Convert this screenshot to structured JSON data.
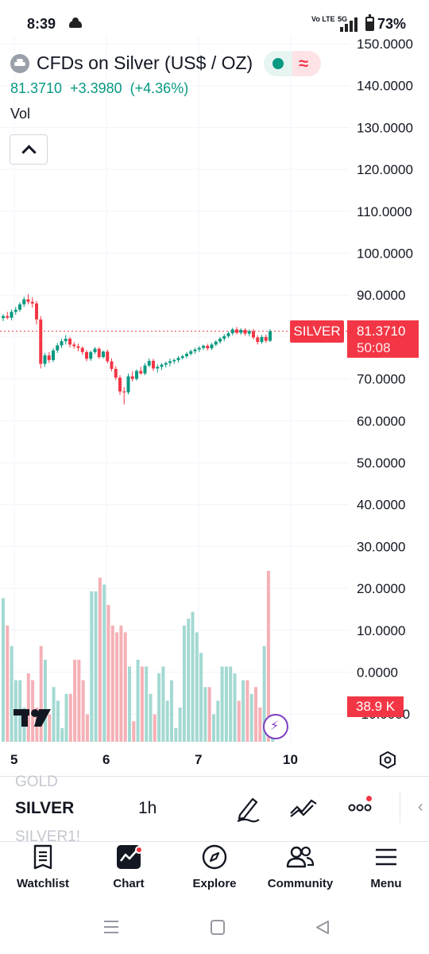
{
  "status_bar": {
    "time": "8:39",
    "volte": "Vo LTE",
    "network": "5G",
    "battery_text": "73%",
    "battery_level": 0.73
  },
  "header": {
    "symbol_title": "CFDs on Silver (US$ / OZ)",
    "last_price": "81.3710",
    "change": "+3.3980",
    "change_percent": "(+4.36%)",
    "vol_label": "Vol",
    "up_color": "#089981",
    "down_color": "#f23645"
  },
  "price_axis": {
    "ticks": [
      "150.0000",
      "140.0000",
      "130.0000",
      "120.0000",
      "110.0000",
      "100.0000",
      "90.0000",
      "81.3710",
      "70.0000",
      "60.0000",
      "50.0000",
      "40.0000",
      "30.0000",
      "20.0000",
      "10.0000",
      "0.0000",
      "-10.0000"
    ],
    "price_tag_symbol": "SILVER",
    "price_tag_value": "81.3710",
    "countdown": "50:08",
    "volume_tag": "38.9 K"
  },
  "time_axis": {
    "labels": [
      "5",
      "6",
      "7",
      "10"
    ]
  },
  "chart_data": {
    "type": "candlestick",
    "title": "CFDs on Silver (US$ / OZ)",
    "interval": "1h",
    "last_price": 81.371,
    "ylim": [
      -10,
      150
    ],
    "x_ticks": [
      "5",
      "6",
      "7",
      "10"
    ],
    "candles": [
      {
        "o": 84.5,
        "h": 85.5,
        "l": 83.8,
        "c": 85.0
      },
      {
        "o": 85.0,
        "h": 86.0,
        "l": 84.2,
        "c": 84.6
      },
      {
        "o": 84.6,
        "h": 86.6,
        "l": 84.0,
        "c": 86.0
      },
      {
        "o": 86.0,
        "h": 87.2,
        "l": 85.3,
        "c": 86.5
      },
      {
        "o": 86.5,
        "h": 88.3,
        "l": 86.0,
        "c": 87.8
      },
      {
        "o": 87.8,
        "h": 89.6,
        "l": 87.2,
        "c": 89.0
      },
      {
        "o": 89.0,
        "h": 90.2,
        "l": 87.8,
        "c": 88.4
      },
      {
        "o": 88.4,
        "h": 89.5,
        "l": 87.0,
        "c": 88.0
      },
      {
        "o": 88.0,
        "h": 88.6,
        "l": 83.0,
        "c": 84.2
      },
      {
        "o": 84.2,
        "h": 85.0,
        "l": 72.5,
        "c": 73.6
      },
      {
        "o": 73.6,
        "h": 76.2,
        "l": 72.9,
        "c": 75.6
      },
      {
        "o": 75.6,
        "h": 76.4,
        "l": 73.8,
        "c": 74.5
      },
      {
        "o": 74.5,
        "h": 77.3,
        "l": 74.0,
        "c": 76.8
      },
      {
        "o": 76.8,
        "h": 78.6,
        "l": 76.2,
        "c": 78.0
      },
      {
        "o": 78.0,
        "h": 79.6,
        "l": 77.4,
        "c": 79.0
      },
      {
        "o": 79.0,
        "h": 80.5,
        "l": 78.2,
        "c": 79.6
      },
      {
        "o": 79.6,
        "h": 80.0,
        "l": 77.5,
        "c": 78.2
      },
      {
        "o": 78.2,
        "h": 78.8,
        "l": 77.2,
        "c": 77.8
      },
      {
        "o": 77.8,
        "h": 78.4,
        "l": 76.6,
        "c": 77.4
      },
      {
        "o": 77.4,
        "h": 77.8,
        "l": 75.8,
        "c": 76.4
      },
      {
        "o": 76.4,
        "h": 76.9,
        "l": 74.2,
        "c": 74.8
      },
      {
        "o": 74.8,
        "h": 76.8,
        "l": 74.3,
        "c": 76.4
      },
      {
        "o": 76.4,
        "h": 77.6,
        "l": 75.9,
        "c": 77.2
      },
      {
        "o": 77.2,
        "h": 77.6,
        "l": 74.8,
        "c": 75.2
      },
      {
        "o": 75.2,
        "h": 76.8,
        "l": 74.9,
        "c": 76.5
      },
      {
        "o": 76.5,
        "h": 77.0,
        "l": 73.7,
        "c": 74.2
      },
      {
        "o": 74.2,
        "h": 74.9,
        "l": 71.8,
        "c": 72.4
      },
      {
        "o": 72.4,
        "h": 73.1,
        "l": 69.7,
        "c": 70.3
      },
      {
        "o": 70.3,
        "h": 70.9,
        "l": 66.2,
        "c": 67.0
      },
      {
        "o": 67.0,
        "h": 68.0,
        "l": 63.9,
        "c": 66.8
      },
      {
        "o": 66.8,
        "h": 71.3,
        "l": 66.3,
        "c": 70.6
      },
      {
        "o": 70.6,
        "h": 71.8,
        "l": 69.4,
        "c": 70.0
      },
      {
        "o": 70.0,
        "h": 72.3,
        "l": 69.6,
        "c": 71.9
      },
      {
        "o": 71.9,
        "h": 72.9,
        "l": 71.0,
        "c": 71.3
      },
      {
        "o": 71.3,
        "h": 73.8,
        "l": 70.9,
        "c": 73.2
      },
      {
        "o": 73.2,
        "h": 74.9,
        "l": 72.8,
        "c": 74.3
      },
      {
        "o": 74.3,
        "h": 74.8,
        "l": 71.9,
        "c": 72.5
      },
      {
        "o": 72.5,
        "h": 73.5,
        "l": 71.5,
        "c": 72.9
      },
      {
        "o": 72.9,
        "h": 73.8,
        "l": 72.1,
        "c": 73.4
      },
      {
        "o": 73.4,
        "h": 74.1,
        "l": 72.7,
        "c": 73.8
      },
      {
        "o": 73.8,
        "h": 74.8,
        "l": 73.0,
        "c": 74.2
      },
      {
        "o": 74.2,
        "h": 74.9,
        "l": 73.6,
        "c": 74.5
      },
      {
        "o": 74.5,
        "h": 75.4,
        "l": 73.9,
        "c": 75.0
      },
      {
        "o": 75.0,
        "h": 75.8,
        "l": 74.6,
        "c": 75.4
      },
      {
        "o": 75.4,
        "h": 76.4,
        "l": 74.9,
        "c": 76.0
      },
      {
        "o": 76.0,
        "h": 77.0,
        "l": 75.6,
        "c": 76.6
      },
      {
        "o": 76.6,
        "h": 77.4,
        "l": 76.0,
        "c": 77.0
      },
      {
        "o": 77.0,
        "h": 77.8,
        "l": 76.4,
        "c": 77.4
      },
      {
        "o": 77.4,
        "h": 78.2,
        "l": 76.9,
        "c": 77.9
      },
      {
        "o": 77.9,
        "h": 78.4,
        "l": 76.8,
        "c": 77.3
      },
      {
        "o": 77.3,
        "h": 78.6,
        "l": 76.9,
        "c": 78.2
      },
      {
        "o": 78.2,
        "h": 79.2,
        "l": 77.8,
        "c": 78.9
      },
      {
        "o": 78.9,
        "h": 80.0,
        "l": 78.4,
        "c": 79.6
      },
      {
        "o": 79.6,
        "h": 80.7,
        "l": 79.0,
        "c": 80.2
      },
      {
        "o": 80.2,
        "h": 81.3,
        "l": 79.8,
        "c": 80.9
      },
      {
        "o": 80.9,
        "h": 82.2,
        "l": 80.4,
        "c": 81.8
      },
      {
        "o": 81.8,
        "h": 82.4,
        "l": 80.6,
        "c": 81.0
      },
      {
        "o": 81.0,
        "h": 82.1,
        "l": 80.5,
        "c": 81.7
      },
      {
        "o": 81.7,
        "h": 82.1,
        "l": 80.3,
        "c": 80.8
      },
      {
        "o": 80.8,
        "h": 81.8,
        "l": 80.2,
        "c": 81.4
      },
      {
        "o": 81.4,
        "h": 81.9,
        "l": 79.4,
        "c": 79.9
      },
      {
        "o": 79.9,
        "h": 80.4,
        "l": 78.2,
        "c": 78.8
      },
      {
        "o": 78.8,
        "h": 80.5,
        "l": 78.4,
        "c": 80.0
      },
      {
        "o": 80.0,
        "h": 80.6,
        "l": 78.6,
        "c": 79.1
      },
      {
        "o": 79.1,
        "h": 81.9,
        "l": 78.8,
        "c": 81.37
      }
    ],
    "volume": [
      21,
      17,
      14,
      9,
      9,
      5,
      10,
      9,
      5,
      14,
      12,
      4,
      8,
      6,
      2,
      7,
      7,
      12,
      12,
      9,
      4,
      22,
      22,
      24,
      23,
      20,
      17,
      16,
      17,
      16,
      11,
      3,
      12,
      11,
      11,
      7,
      4,
      10,
      11,
      6,
      9,
      2,
      5,
      17,
      18,
      19,
      16,
      13,
      8,
      8,
      4,
      6,
      11,
      11,
      11,
      10,
      6,
      9,
      9,
      7,
      8,
      5,
      14,
      25,
      1
    ]
  },
  "symbol_bar": {
    "prev_symbol": "GOLD",
    "symbol": "SILVER",
    "next_symbol": "SILVER1!",
    "interval": "1h"
  },
  "tools": {
    "draw": "pencil-icon",
    "indicators": "indicators-icon",
    "more": "more-icon"
  },
  "bottom_nav": {
    "items": [
      {
        "label": "Watchlist",
        "icon": "watchlist-icon"
      },
      {
        "label": "Chart",
        "icon": "chart-icon"
      },
      {
        "label": "Explore",
        "icon": "compass-icon"
      },
      {
        "label": "Community",
        "icon": "people-icon"
      },
      {
        "label": "Menu",
        "icon": "menu-icon"
      }
    ]
  }
}
